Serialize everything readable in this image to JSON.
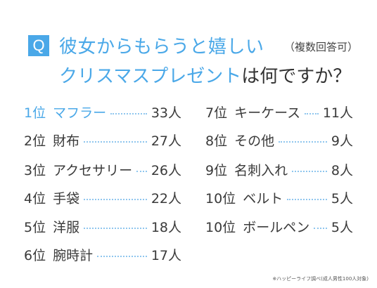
{
  "header": {
    "badge": "Q",
    "title_line1": "彼女からもらうと嬉しい",
    "note": "（複数回答可）",
    "title_line2": "クリスマスプレゼント",
    "title_suffix": "は何ですか？"
  },
  "ranking_left": [
    {
      "rank": "1位",
      "name": "マフラー",
      "count": "33人"
    },
    {
      "rank": "2位",
      "name": "財布",
      "count": "27人"
    },
    {
      "rank": "3位",
      "name": "アクセサリー",
      "count": "26人"
    },
    {
      "rank": "4位",
      "name": "手袋",
      "count": "22人"
    },
    {
      "rank": "5位",
      "name": "洋服",
      "count": "18人"
    },
    {
      "rank": "6位",
      "name": "腕時計",
      "count": "17人"
    }
  ],
  "ranking_right": [
    {
      "rank": "7位",
      "name": "キーケース",
      "count": "11人"
    },
    {
      "rank": "8位",
      "name": "その他",
      "count": "9人"
    },
    {
      "rank": "9位",
      "name": "名刺入れ",
      "count": "8人"
    },
    {
      "rank": "10位",
      "name": "ベルト",
      "count": "5人"
    },
    {
      "rank": "10位",
      "name": "ボールペン",
      "count": "5人"
    }
  ],
  "footnote": "※ハッピーライフ調べ(成人男性100人対象)",
  "colors": {
    "accent": "#4aa8e8",
    "text": "#3a3a3a"
  }
}
